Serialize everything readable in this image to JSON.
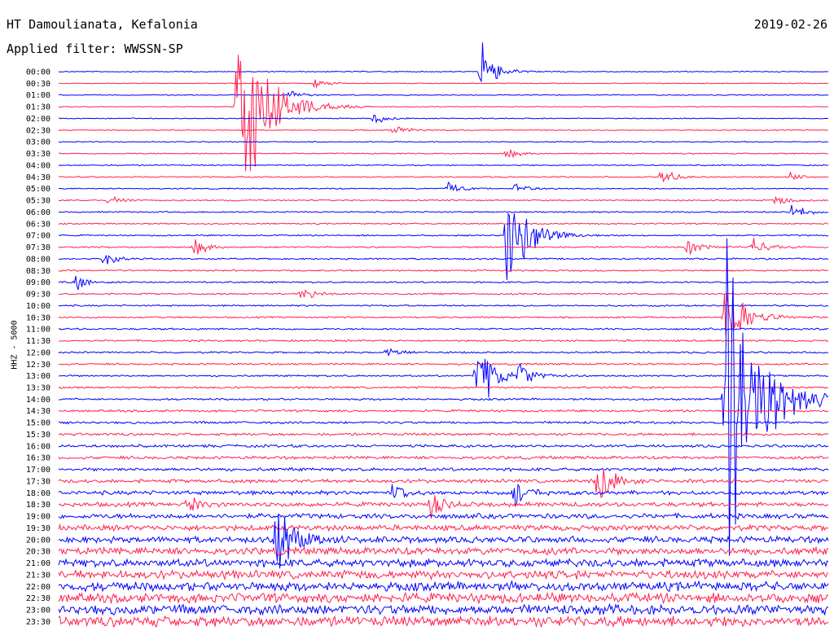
{
  "header": {
    "station": "HT Damoulianata, Kefalonia",
    "filter": "Applied filter: WWSSN-SP",
    "date": "2019-02-26"
  },
  "chart_data": {
    "type": "line",
    "title": "HT Damoulianata, Kefalonia",
    "subtitle": "Applied filter: WWSSN-SP",
    "date": "2019-02-26",
    "ylabel": "HHZ - 5000",
    "xlabel": "",
    "grid": false,
    "rows": [
      "00:00",
      "00:30",
      "01:00",
      "01:30",
      "02:00",
      "02:30",
      "03:00",
      "03:30",
      "04:00",
      "04:30",
      "05:00",
      "05:30",
      "06:00",
      "06:30",
      "07:00",
      "07:30",
      "08:00",
      "08:30",
      "09:00",
      "09:30",
      "10:00",
      "10:30",
      "11:00",
      "11:30",
      "12:00",
      "12:30",
      "13:00",
      "13:30",
      "14:00",
      "14:30",
      "15:00",
      "15:30",
      "16:00",
      "16:30",
      "17:00",
      "17:30",
      "18:00",
      "18:30",
      "19:00",
      "19:30",
      "20:00",
      "20:30",
      "21:00",
      "21:30",
      "22:00",
      "22:30",
      "23:00",
      "23:30"
    ],
    "colors": [
      "#0000ff",
      "#ff2050"
    ],
    "noise_level": [
      0.5,
      0.4,
      0.5,
      0.4,
      0.5,
      0.5,
      0.5,
      0.6,
      0.6,
      0.6,
      0.6,
      0.7,
      0.7,
      0.7,
      0.7,
      0.8,
      0.8,
      0.8,
      0.8,
      0.8,
      0.8,
      0.8,
      0.9,
      0.9,
      0.9,
      0.9,
      0.9,
      1.0,
      1.0,
      1.1,
      1.2,
      1.3,
      1.4,
      1.5,
      1.6,
      1.8,
      2.0,
      2.2,
      2.5,
      2.8,
      3.2,
      3.6,
      4.0,
      4.2,
      4.5,
      4.8,
      5.0,
      5.2
    ],
    "events": [
      {
        "row": 0,
        "minute": 16.5,
        "amplitude": 40
      },
      {
        "row": 1,
        "minute": 10.0,
        "amplitude": 8
      },
      {
        "row": 2,
        "minute": 9.0,
        "amplitude": 10
      },
      {
        "row": 3,
        "minute": 7.0,
        "amplitude": 180
      },
      {
        "row": 4,
        "minute": 12.3,
        "amplitude": 10
      },
      {
        "row": 5,
        "minute": 13.0,
        "amplitude": 12
      },
      {
        "row": 7,
        "minute": 17.5,
        "amplitude": 8
      },
      {
        "row": 9,
        "minute": 23.5,
        "amplitude": 14
      },
      {
        "row": 9,
        "minute": 28.5,
        "amplitude": 8
      },
      {
        "row": 10,
        "minute": 15.2,
        "amplitude": 10
      },
      {
        "row": 10,
        "minute": 17.8,
        "amplitude": 12
      },
      {
        "row": 11,
        "minute": 2.0,
        "amplitude": 10
      },
      {
        "row": 11,
        "minute": 28.0,
        "amplitude": 10
      },
      {
        "row": 12,
        "minute": 28.6,
        "amplitude": 14
      },
      {
        "row": 14,
        "minute": 17.5,
        "amplitude": 100
      },
      {
        "row": 15,
        "minute": 5.3,
        "amplitude": 14
      },
      {
        "row": 15,
        "minute": 24.5,
        "amplitude": 14
      },
      {
        "row": 15,
        "minute": 27.0,
        "amplitude": 20
      },
      {
        "row": 16,
        "minute": 1.8,
        "amplitude": 12
      },
      {
        "row": 18,
        "minute": 0.7,
        "amplitude": 12
      },
      {
        "row": 19,
        "minute": 9.5,
        "amplitude": 14
      },
      {
        "row": 21,
        "minute": 26.0,
        "amplitude": 70
      },
      {
        "row": 24,
        "minute": 12.8,
        "amplitude": 12
      },
      {
        "row": 26,
        "minute": 16.3,
        "amplitude": 60
      },
      {
        "row": 26,
        "minute": 18.0,
        "amplitude": 20
      },
      {
        "row": 28,
        "minute": 26.0,
        "amplitude": 240
      },
      {
        "row": 35,
        "minute": 21.0,
        "amplitude": 40
      },
      {
        "row": 36,
        "minute": 13.0,
        "amplitude": 16
      },
      {
        "row": 36,
        "minute": 17.8,
        "amplitude": 16
      },
      {
        "row": 37,
        "minute": 14.5,
        "amplitude": 18
      },
      {
        "row": 37,
        "minute": 5.0,
        "amplitude": 14
      },
      {
        "row": 40,
        "minute": 8.5,
        "amplitude": 60
      }
    ]
  }
}
